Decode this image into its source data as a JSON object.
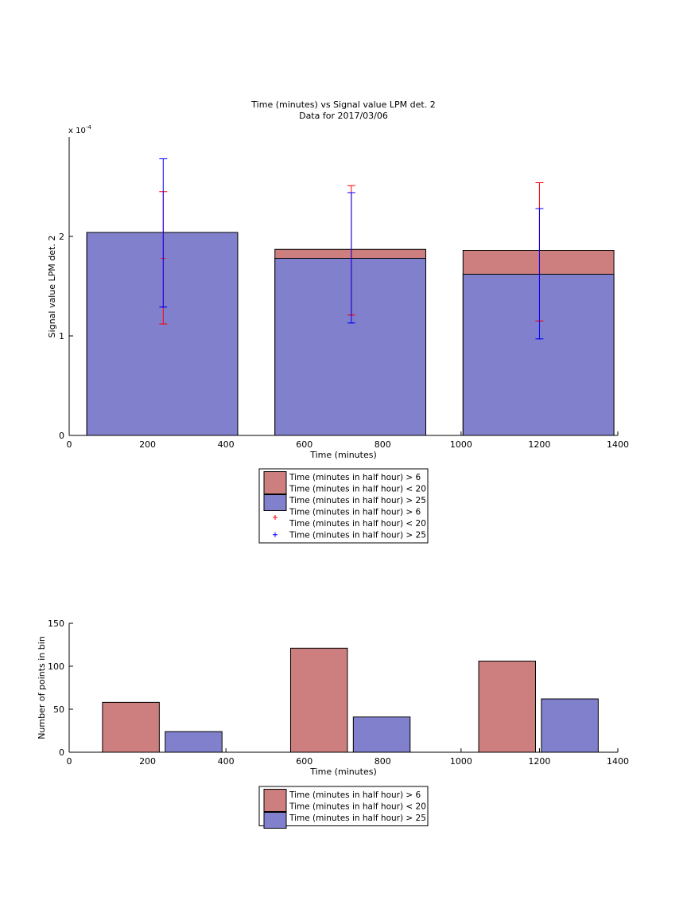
{
  "chart_data": [
    {
      "type": "bar",
      "title": "Time (minutes) vs Signal value LPM det. 2",
      "subtitle": "Data for 2017/03/06",
      "xlabel": "Time (minutes)",
      "ylabel": "Signal value LPM det. 2",
      "y_exponent_label": "x 10",
      "y_exponent_power": "-4",
      "y_scale": 0.0001,
      "xlim": [
        0,
        1400
      ],
      "ylim": [
        0,
        0.0003
      ],
      "xticks": [
        0,
        200,
        400,
        600,
        800,
        1000,
        1200,
        1400
      ],
      "yticks": [
        0,
        1,
        2
      ],
      "grid": false,
      "legend_position": "below",
      "bins": [
        {
          "x0": 45,
          "x1": 430,
          "center": 240
        },
        {
          "x0": 525,
          "x1": 910,
          "center": 720
        },
        {
          "x0": 1005,
          "x1": 1390,
          "center": 1200
        }
      ],
      "series": [
        {
          "name": "Time (minutes in half hour) > 6\nTime (minutes in half hour) < 20",
          "color": "#cd7f7f",
          "values": [
            0.000204,
            0.000187,
            0.000186
          ]
        },
        {
          "name": "Time (minutes in half hour) > 25",
          "color": "#8080cd",
          "values": [
            0.000204,
            0.000178,
            0.000162
          ]
        }
      ],
      "error_bars": [
        {
          "name": "Time (minutes in half hour) > 6\nTime (minutes in half hour) < 20",
          "color": "#ff0000",
          "x": [
            240,
            720,
            1200
          ],
          "mean": [
            0.000178,
            0.000121,
            0.000115
          ],
          "low": [
            0.000112,
            0.000121,
            0.000115
          ],
          "high": [
            0.000245,
            0.000251,
            0.000254
          ]
        },
        {
          "name": "Time (minutes in half hour) > 25",
          "color": "#0000ff",
          "x": [
            240,
            720,
            1200
          ],
          "mean": [
            0.000129,
            0.000113,
            9.7e-05
          ],
          "low": [
            0.000129,
            0.000113,
            9.7e-05
          ],
          "high": [
            0.000278,
            0.000244,
            0.000228
          ]
        }
      ],
      "legend": [
        {
          "kind": "patch",
          "color": "#cd7f7f",
          "lines": [
            "Time (minutes in half hour) > 6",
            "Time (minutes in half hour) < 20"
          ]
        },
        {
          "kind": "patch",
          "color": "#8080cd",
          "lines": [
            "Time (minutes in half hour) > 25"
          ]
        },
        {
          "kind": "marker",
          "color": "#ff0000",
          "lines": [
            "Time (minutes in half hour) > 6",
            "Time (minutes in half hour) < 20"
          ]
        },
        {
          "kind": "marker",
          "color": "#0000ff",
          "lines": [
            "Time (minutes in half hour) > 25"
          ]
        }
      ]
    },
    {
      "type": "bar",
      "title": "",
      "xlabel": "Time (minutes)",
      "ylabel": "Number of points in bin",
      "xlim": [
        0,
        1400
      ],
      "ylim": [
        0,
        150
      ],
      "xticks": [
        0,
        200,
        400,
        600,
        800,
        1000,
        1200,
        1400
      ],
      "yticks": [
        0,
        50,
        100,
        150
      ],
      "grid": false,
      "legend_position": "below",
      "series": [
        {
          "name": "Time (minutes in half hour) > 6\nTime (minutes in half hour) < 20",
          "color": "#cd7f7f",
          "bars": [
            {
              "x0": 85,
              "x1": 230,
              "value": 58
            },
            {
              "x0": 565,
              "x1": 710,
              "value": 121
            },
            {
              "x0": 1045,
              "x1": 1190,
              "value": 106
            }
          ]
        },
        {
          "name": "Time (minutes in half hour) > 25",
          "color": "#8080cd",
          "bars": [
            {
              "x0": 245,
              "x1": 390,
              "value": 24
            },
            {
              "x0": 725,
              "x1": 870,
              "value": 41
            },
            {
              "x0": 1205,
              "x1": 1350,
              "value": 62
            }
          ]
        }
      ],
      "legend": [
        {
          "kind": "patch",
          "color": "#cd7f7f",
          "lines": [
            "Time (minutes in half hour) > 6",
            "Time (minutes in half hour) < 20"
          ]
        },
        {
          "kind": "patch",
          "color": "#8080cd",
          "lines": [
            "Time (minutes in half hour) > 25"
          ]
        }
      ]
    }
  ]
}
